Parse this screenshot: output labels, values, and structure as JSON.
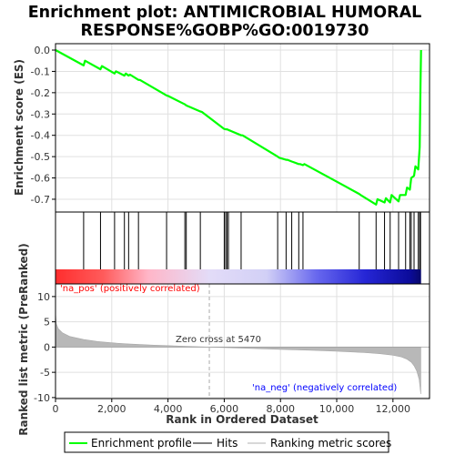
{
  "chart_data": {
    "type": "line",
    "title_line1": "Enrichment plot: ANTIMICROBIAL HUMORAL",
    "title_line2": "RESPONSE%GOBP%GO:0019730",
    "es_ylabel": "Enrichment score (ES)",
    "metric_ylabel_line1": "Ranked list metric (PreRanked)",
    "xlabel": "Rank in Ordered Dataset",
    "x_ticks": [
      "0",
      "2,000",
      "4,000",
      "6,000",
      "8,000",
      "10,000",
      "12,000"
    ],
    "x_tick_values": [
      0,
      2000,
      4000,
      6000,
      8000,
      10000,
      12000
    ],
    "xlim": [
      0,
      13300
    ],
    "es_ylim": [
      -0.76,
      0.03
    ],
    "es_ticks": [
      "0.0",
      "-0.1",
      "-0.2",
      "-0.3",
      "-0.4",
      "-0.5",
      "-0.6",
      "-0.7"
    ],
    "es_tick_values": [
      0.0,
      -0.1,
      -0.2,
      -0.3,
      -0.4,
      -0.5,
      -0.6,
      -0.7
    ],
    "metric_ylim": [
      -10.2,
      12.5
    ],
    "metric_ticks": [
      "10",
      "5",
      "0",
      "-5",
      "-10"
    ],
    "metric_tick_values": [
      10,
      5,
      0,
      -5,
      -10
    ],
    "n_genes": 13000,
    "enrichment_profile": {
      "x": [
        0,
        1000,
        1050,
        1600,
        1650,
        2100,
        2150,
        2450,
        2500,
        2600,
        2650,
        2950,
        3000,
        3950,
        4000,
        4600,
        4650,
        5150,
        5200,
        6000,
        6050,
        6100,
        6150,
        6600,
        6650,
        7900,
        7950,
        8200,
        8250,
        8400,
        8450,
        8650,
        8700,
        8800,
        8850,
        10800,
        10850,
        11400,
        11450,
        11700,
        11750,
        11900,
        11950,
        12200,
        12250,
        12450,
        12500,
        12600,
        12650,
        12750,
        12800,
        12900,
        12950,
        12980,
        13000
      ],
      "y": [
        0.0,
        -0.072,
        -0.05,
        -0.09,
        -0.075,
        -0.11,
        -0.1,
        -0.12,
        -0.11,
        -0.12,
        -0.115,
        -0.14,
        -0.14,
        -0.213,
        -0.215,
        -0.255,
        -0.26,
        -0.288,
        -0.29,
        -0.37,
        -0.372,
        -0.372,
        -0.375,
        -0.4,
        -0.4,
        -0.5,
        -0.505,
        -0.515,
        -0.515,
        -0.523,
        -0.525,
        -0.535,
        -0.535,
        -0.54,
        -0.535,
        -0.675,
        -0.68,
        -0.725,
        -0.7,
        -0.715,
        -0.695,
        -0.715,
        -0.68,
        -0.71,
        -0.68,
        -0.68,
        -0.645,
        -0.655,
        -0.6,
        -0.59,
        -0.545,
        -0.56,
        -0.455,
        -0.16,
        0.0
      ]
    },
    "hits": [
      1000,
      1600,
      2100,
      2450,
      2600,
      2950,
      3950,
      4600,
      4650,
      5150,
      6000,
      6050,
      6100,
      6150,
      6600,
      7900,
      8200,
      8400,
      8650,
      8800,
      10800,
      11400,
      11700,
      11900,
      12200,
      12450,
      12600,
      12650,
      12750,
      12900,
      12950,
      12980
    ],
    "ranking_metric": {
      "x": [
        0,
        30,
        100,
        250,
        500,
        1000,
        1500,
        2000,
        2500,
        3000,
        3500,
        4000,
        4500,
        5000,
        5470,
        6000,
        7000,
        8000,
        9000,
        10000,
        10500,
        11000,
        11500,
        12000,
        12300,
        12500,
        12650,
        12750,
        12850,
        12930,
        12990
      ],
      "y": [
        6.8,
        4.6,
        3.6,
        2.8,
        2.1,
        1.5,
        1.1,
        0.85,
        0.65,
        0.5,
        0.38,
        0.28,
        0.18,
        0.08,
        0.0,
        -0.1,
        -0.28,
        -0.45,
        -0.62,
        -0.82,
        -0.95,
        -1.1,
        -1.3,
        -1.6,
        -1.95,
        -2.4,
        -3.0,
        -3.7,
        -4.8,
        -6.4,
        -9.3
      ]
    },
    "heatmap_stops": [
      {
        "x": 0,
        "color": "#ff2e2e"
      },
      {
        "x": 1700,
        "color": "#ff5b5b"
      },
      {
        "x": 3300,
        "color": "#ffb6c8"
      },
      {
        "x": 5470,
        "color": "#e3dcf8"
      },
      {
        "x": 7500,
        "color": "#d2d0f6"
      },
      {
        "x": 9300,
        "color": "#6767ee"
      },
      {
        "x": 11000,
        "color": "#2626d6"
      },
      {
        "x": 12600,
        "color": "#0b0b9a"
      },
      {
        "x": 13000,
        "color": "#08086a"
      }
    ],
    "zero_cross_rank": 5470,
    "zero_cross_label": "Zero cross at 5470",
    "na_pos_label": "'na_pos' (positively correlated)",
    "na_neg_label": "'na_neg' (negatively correlated)",
    "legend": {
      "items": [
        {
          "label": "Enrichment profile",
          "kind": "line",
          "color": "#00ff00"
        },
        {
          "label": "Hits",
          "kind": "line",
          "color": "#000000"
        },
        {
          "label": "Ranking metric scores",
          "kind": "line",
          "color": "#b0b0b0"
        }
      ],
      "placement": "bottom"
    },
    "colors": {
      "profile": "#00ff00",
      "hits": "#000000",
      "metric_fill": "#b8b8b8",
      "pos_label": "#ff0000",
      "neg_label": "#0000ff",
      "grid": "#e0e0e0"
    }
  }
}
